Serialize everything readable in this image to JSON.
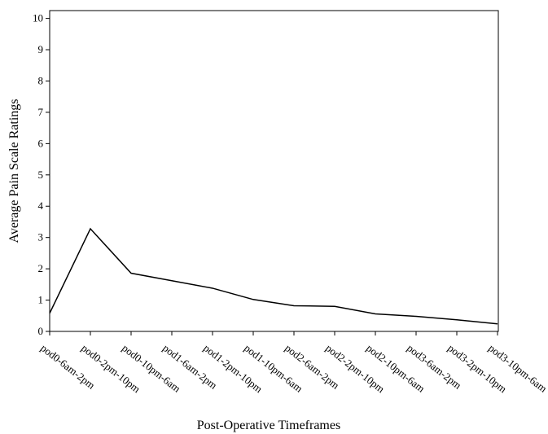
{
  "chart_data": {
    "type": "line",
    "title": "",
    "xlabel": "Post-Operative Timeframes",
    "ylabel": "Average Pain Scale Ratings",
    "categories": [
      "pod0-6am-2pm",
      "pod0-2pm-10pm",
      "pod0-10pm-6am",
      "pod1-6am-2pm",
      "pod1-2pm-10pm",
      "pod1-10pm-6am",
      "pod2-6am-2pm",
      "pod2-2pm-10pm",
      "pod2-10pm-6am",
      "pod3-6am-2pm",
      "pod3-2pm-10pm",
      "pod3-10pm-6am"
    ],
    "series": [
      {
        "values": [
          0.58,
          3.28,
          1.86,
          1.62,
          1.38,
          1.02,
          0.82,
          0.8,
          0.56,
          0.48,
          0.37,
          0.24
        ]
      }
    ],
    "ylim": [
      0,
      10
    ],
    "yticks": [
      0,
      1,
      2,
      3,
      4,
      5,
      6,
      7,
      8,
      9,
      10
    ],
    "grid": false,
    "legend": "none",
    "line_color": "#000000"
  }
}
